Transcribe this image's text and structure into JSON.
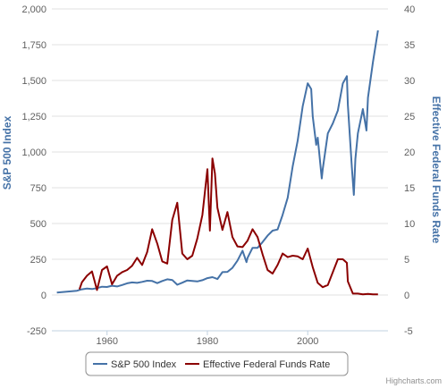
{
  "chart_data": {
    "type": "line",
    "x_ticks": [
      "1960",
      "1980",
      "2000"
    ],
    "y_left": {
      "label": "S&P 500 Index",
      "ticks": [
        "2,000",
        "1,750",
        "1,500",
        "1,250",
        "1,000",
        "750",
        "500",
        "250",
        "0",
        "-250"
      ],
      "ylim": [
        -250,
        2000
      ]
    },
    "y_right": {
      "label": "Effective Federal Funds Rate",
      "ticks": [
        "40",
        "35",
        "30",
        "25",
        "20",
        "15",
        "10",
        "5",
        "0",
        "-5"
      ],
      "ylim": [
        -5,
        40
      ]
    },
    "xlim": [
      1949,
      2016
    ],
    "grid": "horizontal",
    "legend_position": "bottom",
    "series": [
      {
        "name": "S&P 500 Index",
        "axis": "left",
        "color": "#4572a7",
        "points": [
          [
            1950,
            17
          ],
          [
            1952,
            24
          ],
          [
            1954,
            30
          ],
          [
            1955,
            40
          ],
          [
            1956,
            45
          ],
          [
            1957,
            42
          ],
          [
            1958,
            48
          ],
          [
            1959,
            58
          ],
          [
            1960,
            56
          ],
          [
            1961,
            65
          ],
          [
            1962,
            60
          ],
          [
            1963,
            70
          ],
          [
            1964,
            82
          ],
          [
            1965,
            88
          ],
          [
            1966,
            85
          ],
          [
            1967,
            92
          ],
          [
            1968,
            100
          ],
          [
            1969,
            98
          ],
          [
            1970,
            83
          ],
          [
            1971,
            98
          ],
          [
            1972,
            110
          ],
          [
            1973,
            105
          ],
          [
            1974,
            72
          ],
          [
            1975,
            86
          ],
          [
            1976,
            102
          ],
          [
            1977,
            98
          ],
          [
            1978,
            95
          ],
          [
            1979,
            104
          ],
          [
            1980,
            118
          ],
          [
            1981,
            125
          ],
          [
            1982,
            112
          ],
          [
            1983,
            160
          ],
          [
            1984,
            162
          ],
          [
            1985,
            190
          ],
          [
            1986,
            240
          ],
          [
            1987,
            310
          ],
          [
            1987.8,
            230
          ],
          [
            1988,
            260
          ],
          [
            1989,
            330
          ],
          [
            1990,
            330
          ],
          [
            1991,
            370
          ],
          [
            1992,
            415
          ],
          [
            1993,
            450
          ],
          [
            1994,
            458
          ],
          [
            1995,
            560
          ],
          [
            1996,
            680
          ],
          [
            1997,
            900
          ],
          [
            1998,
            1080
          ],
          [
            1999,
            1320
          ],
          [
            2000,
            1480
          ],
          [
            2000.7,
            1440
          ],
          [
            2001,
            1250
          ],
          [
            2001.7,
            1050
          ],
          [
            2002,
            1100
          ],
          [
            2002.8,
            815
          ],
          [
            2003,
            880
          ],
          [
            2004,
            1130
          ],
          [
            2005,
            1200
          ],
          [
            2006,
            1290
          ],
          [
            2007,
            1480
          ],
          [
            2007.8,
            1530
          ],
          [
            2008,
            1330
          ],
          [
            2008.8,
            890
          ],
          [
            2009.2,
            700
          ],
          [
            2009.5,
            950
          ],
          [
            2010,
            1130
          ],
          [
            2011,
            1300
          ],
          [
            2011.7,
            1150
          ],
          [
            2012,
            1380
          ],
          [
            2013,
            1630
          ],
          [
            2014,
            1850
          ]
        ]
      },
      {
        "name": "Effective Federal Funds Rate",
        "axis": "right",
        "color": "#8b0000",
        "points": [
          [
            1954.5,
            0.8
          ],
          [
            1955,
            1.8
          ],
          [
            1956,
            2.7
          ],
          [
            1957,
            3.3
          ],
          [
            1958,
            0.7
          ],
          [
            1959,
            3.5
          ],
          [
            1960,
            4.0
          ],
          [
            1960.8,
            2.0
          ],
          [
            1961,
            1.5
          ],
          [
            1962,
            2.7
          ],
          [
            1963,
            3.2
          ],
          [
            1964,
            3.5
          ],
          [
            1965,
            4.1
          ],
          [
            1966,
            5.2
          ],
          [
            1967,
            4.2
          ],
          [
            1968,
            6.0
          ],
          [
            1969,
            9.2
          ],
          [
            1970,
            7.2
          ],
          [
            1971,
            4.7
          ],
          [
            1972,
            4.4
          ],
          [
            1973,
            10.5
          ],
          [
            1974,
            12.9
          ],
          [
            1975,
            5.8
          ],
          [
            1976,
            5.0
          ],
          [
            1977,
            5.5
          ],
          [
            1978,
            7.9
          ],
          [
            1979,
            11.2
          ],
          [
            1980,
            17.6
          ],
          [
            1980.5,
            9.0
          ],
          [
            1981,
            19.1
          ],
          [
            1981.5,
            17.0
          ],
          [
            1982,
            12.2
          ],
          [
            1983,
            9.1
          ],
          [
            1984,
            11.6
          ],
          [
            1985,
            8.1
          ],
          [
            1986,
            6.8
          ],
          [
            1987,
            6.7
          ],
          [
            1988,
            7.6
          ],
          [
            1989,
            9.2
          ],
          [
            1990,
            8.1
          ],
          [
            1991,
            5.7
          ],
          [
            1992,
            3.5
          ],
          [
            1993,
            3.0
          ],
          [
            1994,
            4.2
          ],
          [
            1995,
            5.8
          ],
          [
            1996,
            5.3
          ],
          [
            1997,
            5.5
          ],
          [
            1998,
            5.4
          ],
          [
            1999,
            5.0
          ],
          [
            2000,
            6.5
          ],
          [
            2001,
            3.9
          ],
          [
            2002,
            1.7
          ],
          [
            2003,
            1.1
          ],
          [
            2004,
            1.4
          ],
          [
            2005,
            3.2
          ],
          [
            2006,
            5.0
          ],
          [
            2007,
            5.0
          ],
          [
            2007.8,
            4.5
          ],
          [
            2008,
            1.9
          ],
          [
            2009,
            0.2
          ],
          [
            2010,
            0.2
          ],
          [
            2011,
            0.1
          ],
          [
            2012,
            0.15
          ],
          [
            2013,
            0.1
          ],
          [
            2014,
            0.1
          ]
        ]
      }
    ]
  },
  "credit": "Highcharts.com"
}
